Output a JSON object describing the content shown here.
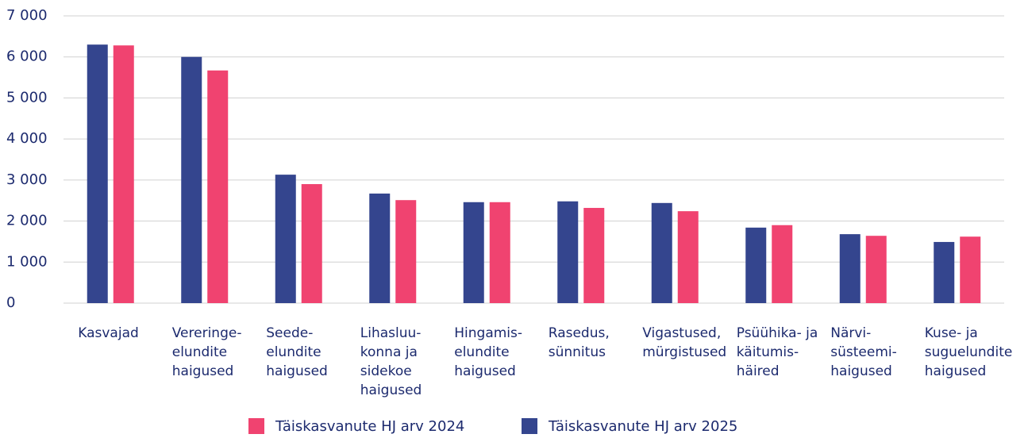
{
  "chart_data": {
    "type": "bar",
    "categories": [
      [
        "Kasvajad"
      ],
      [
        "Vereringe-",
        "elundite",
        "haigused"
      ],
      [
        "Seede-",
        "elundite",
        "haigused"
      ],
      [
        "Lihasluu-",
        "konna ja",
        "sidekoe",
        "haigused"
      ],
      [
        "Hingamis-",
        "elundite",
        "haigused"
      ],
      [
        "Rasedus,",
        "sünnitus"
      ],
      [
        "Vigastused,",
        "mürgistused"
      ],
      [
        "Psüühika- ja",
        "käitumis-",
        "häired"
      ],
      [
        "Närvi-",
        "süsteemi-",
        "haigused"
      ],
      [
        "Kuse- ja",
        "suguelundite",
        "haigused"
      ]
    ],
    "series": [
      {
        "name": "Täiskasvanute HJ arv 2024",
        "color": "#f04370",
        "values": [
          6280,
          5670,
          2900,
          2510,
          2460,
          2320,
          2240,
          1900,
          1640,
          1620
        ]
      },
      {
        "name": "Täiskasvanute HJ arv 2025",
        "color": "#34458e",
        "values": [
          6300,
          6000,
          3130,
          2670,
          2460,
          2480,
          2440,
          1840,
          1680,
          1490
        ]
      }
    ],
    "ylim": [
      0,
      7000
    ],
    "yticks": [
      0,
      {
        "value": 1000,
        "label": "1 000"
      },
      {
        "value": 2000,
        "label": "2 000"
      },
      {
        "value": 3000,
        "label": "3 000"
      },
      {
        "value": 4000,
        "label": "4 000"
      },
      {
        "value": 5000,
        "label": "5 000"
      },
      {
        "value": 6000,
        "label": "6 000"
      },
      {
        "value": 7000,
        "label": "7 000"
      }
    ],
    "grid": true,
    "legend": "bottom"
  }
}
